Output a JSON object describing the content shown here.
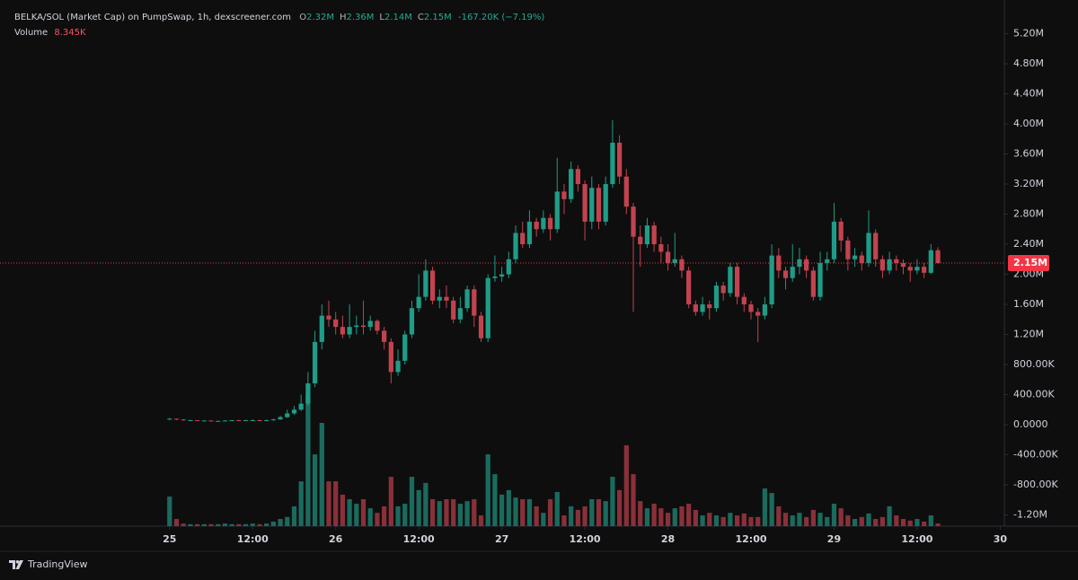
{
  "header": {
    "title": "BELKA/SOL (Market Cap) on PumpSwap, 1h, dexscreener.com",
    "ohlc": [
      {
        "key": "O",
        "label": "2.32M"
      },
      {
        "key": "H",
        "label": "2.36M"
      },
      {
        "key": "L",
        "label": "2.14M"
      },
      {
        "key": "C",
        "label": "2.15M"
      }
    ],
    "change": "-167.20K (−7.19%)",
    "volume_title": "Volume",
    "volume_value": "8.345K"
  },
  "footer": {
    "brand": "TradingView"
  },
  "chart_data": {
    "type": "candlestick",
    "up_color": "#1f9c87",
    "down_color": "#c2434f",
    "volume_up_color": "#1a6b5e",
    "volume_down_color": "#8a3039",
    "xlim": [
      -24.5,
      120.6
    ],
    "xticks": [
      {
        "value": 0,
        "label": "25"
      },
      {
        "value": 12,
        "label": "12:00"
      },
      {
        "value": 24,
        "label": "26"
      },
      {
        "value": 36,
        "label": "12:00"
      },
      {
        "value": 48,
        "label": "27"
      },
      {
        "value": 60,
        "label": "12:00"
      },
      {
        "value": 72,
        "label": "28"
      },
      {
        "value": 84,
        "label": "12:00"
      },
      {
        "value": 96,
        "label": "29"
      },
      {
        "value": 108,
        "label": "12:00"
      },
      {
        "value": 120,
        "label": "30"
      }
    ],
    "ylim": [
      -1349000,
      5648000
    ],
    "yticks": [
      {
        "value": 5200000,
        "label": "5.20M"
      },
      {
        "value": 4800000,
        "label": "4.80M"
      },
      {
        "value": 4400000,
        "label": "4.40M"
      },
      {
        "value": 4000000,
        "label": "4.00M"
      },
      {
        "value": 3600000,
        "label": "3.60M"
      },
      {
        "value": 3200000,
        "label": "3.20M"
      },
      {
        "value": 2800000,
        "label": "2.80M"
      },
      {
        "value": 2400000,
        "label": "2.40M"
      },
      {
        "value": 2000000,
        "label": "2.00M"
      },
      {
        "value": 1600000,
        "label": "1.60M"
      },
      {
        "value": 1200000,
        "label": "1.20M"
      },
      {
        "value": 800000,
        "label": "800.00K"
      },
      {
        "value": 400000,
        "label": "400.00K"
      },
      {
        "value": 0,
        "label": "0.0000"
      },
      {
        "value": -400000,
        "label": "-400.00K"
      },
      {
        "value": -800000,
        "label": "-800.00K"
      },
      {
        "value": -1200000,
        "label": "-1.20M"
      }
    ],
    "grid": false,
    "volume_lim": [
      0,
      600000
    ],
    "last_price": {
      "value": 2150000,
      "label": "2.15M"
    },
    "x": [
      0,
      1,
      2,
      3,
      4,
      5,
      6,
      7,
      8,
      9,
      10,
      11,
      12,
      13,
      14,
      15,
      16,
      17,
      18,
      19,
      20,
      21,
      22,
      23,
      24,
      25,
      26,
      27,
      28,
      29,
      30,
      31,
      32,
      33,
      34,
      35,
      36,
      37,
      38,
      39,
      40,
      41,
      42,
      43,
      44,
      45,
      46,
      47,
      48,
      49,
      50,
      51,
      52,
      53,
      54,
      55,
      56,
      57,
      58,
      59,
      60,
      61,
      62,
      63,
      64,
      65,
      66,
      67,
      68,
      69,
      70,
      71,
      72,
      73,
      74,
      75,
      76,
      77,
      78,
      79,
      80,
      81,
      82,
      83,
      84,
      85,
      86,
      87,
      88,
      89,
      90,
      91,
      92,
      93,
      94,
      95,
      96,
      97,
      98,
      99,
      100,
      101,
      102,
      103,
      104,
      105,
      106,
      107,
      108,
      109,
      110,
      111
    ],
    "open": [
      70000,
      80000,
      70000,
      60000,
      60000,
      55000,
      55000,
      50000,
      50000,
      55000,
      60000,
      55000,
      60000,
      60000,
      55000,
      60000,
      70000,
      100000,
      150000,
      200000,
      280000,
      550000,
      1100000,
      1450000,
      1400000,
      1300000,
      1200000,
      1300000,
      1320000,
      1300000,
      1380000,
      1250000,
      1100000,
      700000,
      850000,
      1200000,
      1550000,
      1700000,
      2050000,
      1650000,
      1700000,
      1650000,
      1400000,
      1550000,
      1800000,
      1450000,
      1150000,
      1950000,
      1970000,
      2000000,
      2200000,
      2550000,
      2400000,
      2700000,
      2600000,
      2750000,
      2600000,
      3100000,
      3000000,
      3400000,
      3200000,
      2700000,
      3150000,
      2700000,
      3200000,
      3750000,
      3300000,
      2900000,
      2500000,
      2400000,
      2650000,
      2400000,
      2300000,
      2150000,
      2200000,
      2050000,
      1600000,
      1500000,
      1600000,
      1550000,
      1850000,
      1750000,
      2100000,
      1700000,
      1600000,
      1500000,
      1450000,
      1600000,
      2250000,
      2050000,
      1950000,
      2100000,
      2200000,
      2050000,
      1700000,
      2150000,
      2200000,
      2700000,
      2450000,
      2200000,
      2250000,
      2150000,
      2550000,
      2200000,
      2050000,
      2200000,
      2150000,
      2100000,
      2050000,
      2100000,
      2020000,
      2320000
    ],
    "high": [
      90000,
      80000,
      70000,
      65000,
      60000,
      60000,
      60000,
      55000,
      60000,
      65000,
      65000,
      65000,
      70000,
      65000,
      70000,
      80000,
      120000,
      200000,
      250000,
      400000,
      700000,
      1250000,
      1600000,
      1650000,
      1500000,
      1450000,
      1600000,
      1450000,
      1650000,
      1450000,
      1400000,
      1300000,
      1150000,
      1000000,
      1250000,
      1650000,
      2000000,
      2200000,
      2100000,
      1800000,
      1850000,
      1700000,
      1700000,
      1850000,
      1850000,
      1500000,
      2000000,
      2250000,
      2100000,
      2300000,
      2650000,
      2700000,
      2850000,
      2750000,
      2850000,
      2800000,
      3550000,
      3200000,
      3500000,
      3450000,
      3250000,
      3300000,
      3200000,
      3300000,
      4050000,
      3850000,
      3400000,
      2950000,
      2650000,
      2750000,
      2700000,
      2500000,
      2400000,
      2550000,
      2250000,
      2100000,
      1650000,
      1700000,
      1650000,
      1900000,
      1900000,
      2150000,
      2150000,
      1750000,
      1650000,
      1550000,
      1700000,
      2400000,
      2350000,
      2100000,
      2400000,
      2350000,
      2250000,
      2100000,
      2300000,
      2300000,
      2950000,
      2750000,
      2500000,
      2350000,
      2300000,
      2850000,
      2600000,
      2250000,
      2300000,
      2250000,
      2200000,
      2150000,
      2200000,
      2150000,
      2400000,
      2360000
    ],
    "low": [
      60000,
      60000,
      50000,
      55000,
      50000,
      50000,
      45000,
      45000,
      45000,
      50000,
      50000,
      50000,
      55000,
      50000,
      50000,
      55000,
      65000,
      90000,
      130000,
      180000,
      250000,
      500000,
      1000000,
      1300000,
      1200000,
      1150000,
      1150000,
      1200000,
      1200000,
      1250000,
      1200000,
      1000000,
      550000,
      650000,
      800000,
      1150000,
      1500000,
      1650000,
      1600000,
      1550000,
      1550000,
      1350000,
      1350000,
      1500000,
      1300000,
      1100000,
      1100000,
      1900000,
      1900000,
      1950000,
      2150000,
      2350000,
      2350000,
      2500000,
      2550000,
      2450000,
      2550000,
      2800000,
      2950000,
      3100000,
      2450000,
      2600000,
      2600000,
      2650000,
      3150000,
      3200000,
      2800000,
      1500000,
      2100000,
      2350000,
      2300000,
      2150000,
      2050000,
      2100000,
      1950000,
      1550000,
      1450000,
      1450000,
      1400000,
      1500000,
      1650000,
      1700000,
      1600000,
      1500000,
      1400000,
      1100000,
      1400000,
      1550000,
      1950000,
      1800000,
      1900000,
      2000000,
      1950000,
      1650000,
      1650000,
      2050000,
      2150000,
      2300000,
      2050000,
      2100000,
      2050000,
      2100000,
      2100000,
      1950000,
      2000000,
      2050000,
      2000000,
      1900000,
      2000000,
      1950000,
      2000000,
      2140000
    ],
    "close": [
      80000,
      70000,
      60000,
      60000,
      55000,
      55000,
      50000,
      50000,
      55000,
      60000,
      55000,
      60000,
      60000,
      55000,
      60000,
      70000,
      100000,
      150000,
      200000,
      280000,
      550000,
      1100000,
      1450000,
      1400000,
      1300000,
      1200000,
      1300000,
      1320000,
      1300000,
      1380000,
      1250000,
      1100000,
      700000,
      850000,
      1200000,
      1550000,
      1700000,
      2050000,
      1650000,
      1700000,
      1650000,
      1400000,
      1550000,
      1800000,
      1450000,
      1150000,
      1950000,
      1970000,
      2000000,
      2200000,
      2550000,
      2400000,
      2700000,
      2600000,
      2750000,
      2600000,
      3100000,
      3000000,
      3400000,
      3200000,
      2700000,
      3150000,
      2700000,
      3200000,
      3750000,
      3300000,
      2900000,
      2500000,
      2400000,
      2650000,
      2400000,
      2300000,
      2150000,
      2200000,
      2050000,
      1600000,
      1500000,
      1600000,
      1550000,
      1850000,
      1750000,
      2100000,
      1700000,
      1600000,
      1500000,
      1450000,
      1600000,
      2250000,
      2050000,
      1950000,
      2100000,
      2200000,
      2050000,
      1700000,
      2150000,
      2200000,
      2700000,
      2450000,
      2200000,
      2250000,
      2150000,
      2550000,
      2200000,
      2050000,
      2200000,
      2150000,
      2100000,
      2050000,
      2100000,
      2020000,
      2320000,
      2150000
    ],
    "volume": [
      91000,
      22000,
      8000,
      6000,
      6000,
      6000,
      6000,
      6000,
      8000,
      6000,
      6000,
      6000,
      8000,
      6000,
      8000,
      14000,
      22000,
      28000,
      61000,
      138000,
      401000,
      221000,
      318000,
      138000,
      138000,
      97000,
      83000,
      69000,
      83000,
      55000,
      41000,
      61000,
      152000,
      61000,
      69000,
      152000,
      111000,
      133000,
      83000,
      77000,
      83000,
      83000,
      69000,
      77000,
      83000,
      33000,
      221000,
      160000,
      97000,
      111000,
      88000,
      83000,
      83000,
      61000,
      41000,
      83000,
      105000,
      33000,
      61000,
      50000,
      61000,
      83000,
      83000,
      77000,
      152000,
      111000,
      249000,
      160000,
      77000,
      55000,
      69000,
      55000,
      41000,
      55000,
      61000,
      69000,
      50000,
      33000,
      41000,
      33000,
      28000,
      41000,
      33000,
      39000,
      28000,
      28000,
      116000,
      102000,
      61000,
      41000,
      33000,
      41000,
      28000,
      50000,
      41000,
      28000,
      69000,
      55000,
      33000,
      22000,
      28000,
      39000,
      22000,
      28000,
      61000,
      33000,
      22000,
      17000,
      22000,
      14000,
      33000,
      8345
    ]
  }
}
